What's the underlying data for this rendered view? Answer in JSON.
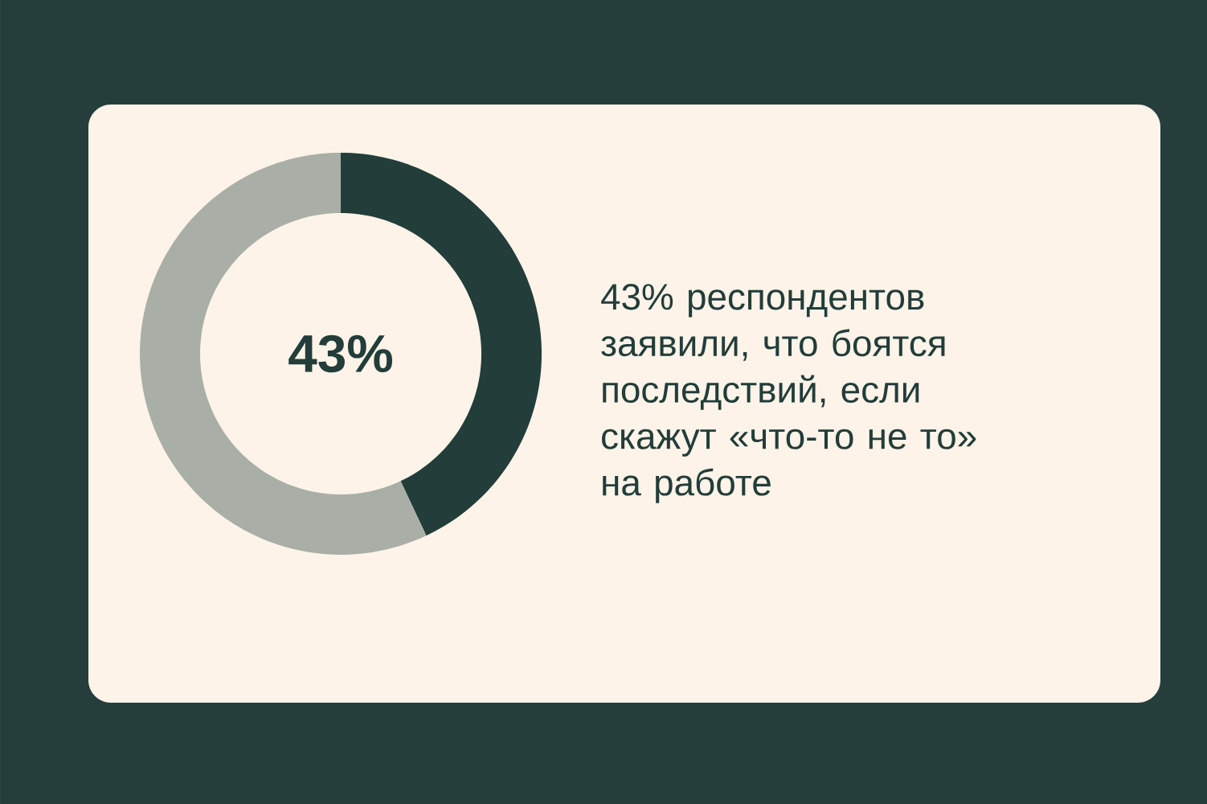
{
  "chart_data": {
    "type": "donut",
    "categories": [
      null,
      null
    ],
    "values": [
      43,
      57
    ],
    "colors": [
      "#223d3a",
      "#a9afa7"
    ],
    "annotations": [
      "43%",
      "43% респондентов заявили, что боятся последствий, если скажут «что-то не то» на работе"
    ]
  }
}
